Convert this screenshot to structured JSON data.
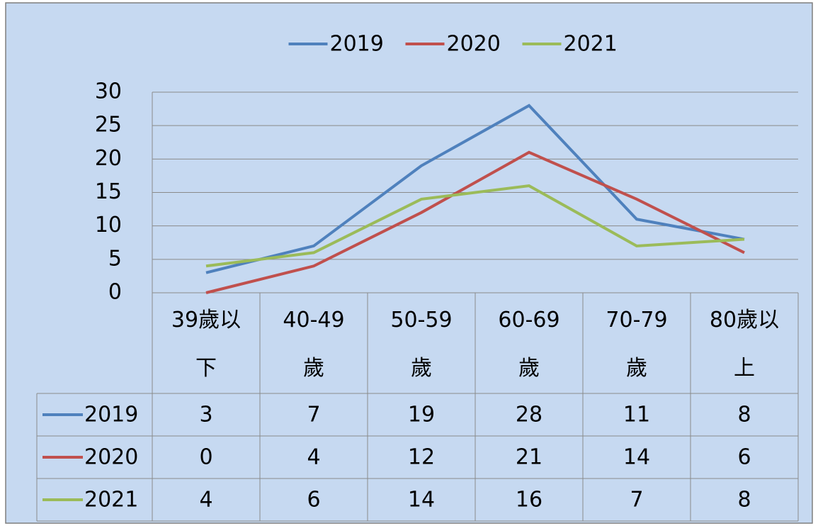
{
  "chart_data": {
    "type": "line",
    "categories": [
      "39歲以下",
      "40-49歲",
      "50-59歲",
      "60-69歲",
      "70-79歲",
      "80歲以上"
    ],
    "series": [
      {
        "name": "2019",
        "color": "#4f81bd",
        "values": [
          3,
          7,
          19,
          28,
          11,
          8
        ]
      },
      {
        "name": "2020",
        "color": "#c0504d",
        "values": [
          0,
          4,
          12,
          21,
          14,
          6
        ]
      },
      {
        "name": "2021",
        "color": "#9bbb59",
        "values": [
          4,
          6,
          14,
          16,
          7,
          8
        ]
      }
    ],
    "ylim": [
      0,
      30
    ],
    "yticks": [
      0,
      5,
      10,
      15,
      20,
      25,
      30
    ],
    "grid": true,
    "legend": "top",
    "data_table": true
  }
}
